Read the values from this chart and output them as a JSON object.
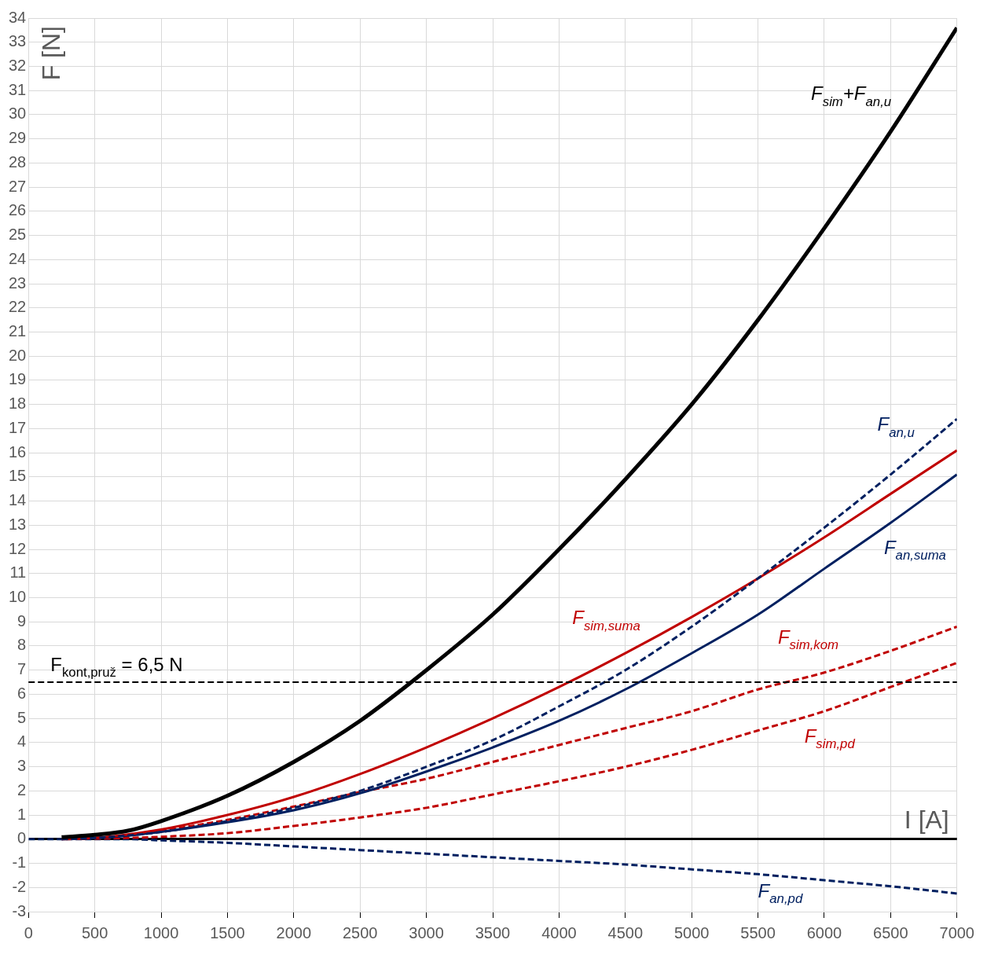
{
  "chart_data": {
    "type": "line",
    "xlabel": "I [A]",
    "ylabel": "F [N]",
    "x": [
      0,
      250,
      500,
      750,
      1000,
      1500,
      2000,
      2500,
      3000,
      3500,
      4000,
      4500,
      5000,
      5500,
      6000,
      6500,
      7000
    ],
    "xlim": [
      0,
      7000
    ],
    "xticks": [
      0,
      500,
      1000,
      1500,
      2000,
      2500,
      3000,
      3500,
      4000,
      4500,
      5000,
      5500,
      6000,
      6500,
      7000
    ],
    "ylim": [
      -3,
      34
    ],
    "yticks": [
      -3,
      -2,
      -1,
      0,
      1,
      2,
      3,
      4,
      5,
      6,
      7,
      8,
      9,
      10,
      11,
      12,
      13,
      14,
      15,
      16,
      17,
      18,
      19,
      20,
      21,
      22,
      23,
      24,
      25,
      26,
      27,
      28,
      29,
      30,
      31,
      32,
      33,
      34
    ],
    "grid": true,
    "legend": false,
    "marker": "none",
    "series": [
      {
        "name": "F$_{sim}$+F$_{an,u}$",
        "color": "#000000",
        "line_style": "solid",
        "values": [
          null,
          0.08,
          0.18,
          0.35,
          0.75,
          1.8,
          3.2,
          4.9,
          7.0,
          9.3,
          12.0,
          14.9,
          18.0,
          21.5,
          25.3,
          29.3,
          33.6
        ]
      },
      {
        "name": "F$_{an,u}$",
        "color": "#002060",
        "line_style": "dashed",
        "values": [
          null,
          0.0,
          0.05,
          0.15,
          0.3,
          0.75,
          1.3,
          2.0,
          3.0,
          4.1,
          5.5,
          7.0,
          8.8,
          10.8,
          12.9,
          15.1,
          17.4
        ]
      },
      {
        "name": "F$_{sim,suma}$",
        "color": "#c00000",
        "line_style": "solid",
        "values": [
          null,
          0.0,
          0.05,
          0.2,
          0.4,
          1.0,
          1.75,
          2.7,
          3.8,
          5.0,
          6.3,
          7.7,
          9.2,
          10.8,
          12.5,
          14.3,
          16.1
        ]
      },
      {
        "name": "F$_{an,suma}$",
        "color": "#002060",
        "line_style": "solid",
        "values": [
          null,
          0.0,
          0.05,
          0.15,
          0.3,
          0.7,
          1.2,
          1.9,
          2.8,
          3.8,
          4.9,
          6.2,
          7.7,
          9.3,
          11.2,
          13.1,
          15.1
        ]
      },
      {
        "name": "F$_{sim,kom}$",
        "color": "#c00000",
        "line_style": "dashed",
        "values": [
          null,
          null,
          0.05,
          0.15,
          0.35,
          0.8,
          1.35,
          1.95,
          2.5,
          3.2,
          3.9,
          4.6,
          5.3,
          6.2,
          6.9,
          7.8,
          8.8
        ]
      },
      {
        "name": "F$_{sim,pd}$",
        "color": "#c00000",
        "line_style": "dashed",
        "values": [
          null,
          null,
          0.02,
          0.05,
          0.1,
          0.25,
          0.55,
          0.9,
          1.3,
          1.85,
          2.4,
          3.0,
          3.7,
          4.5,
          5.3,
          6.3,
          7.3
        ]
      },
      {
        "name": "F$_{an,pd}$",
        "color": "#002060",
        "line_style": "dashed",
        "values": [
          0,
          0,
          0,
          0,
          -0.05,
          -0.15,
          -0.3,
          -0.45,
          -0.6,
          -0.75,
          -0.9,
          -1.05,
          -1.25,
          -1.45,
          -1.7,
          -1.95,
          -2.25
        ]
      }
    ],
    "ref_lines": [
      {
        "axis": "y",
        "value": 6.5,
        "label": "F$_{kont,pruž}$ = 6,5 N",
        "color": "#000000",
        "line_style": "dashed"
      }
    ]
  }
}
